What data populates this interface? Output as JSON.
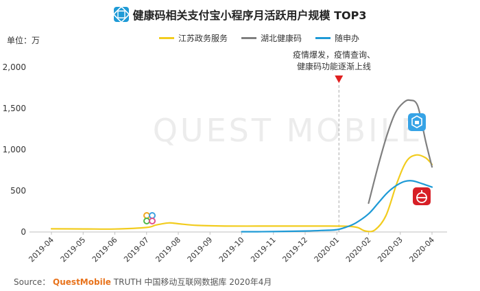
{
  "header": {
    "title": "健康码相关支付宝小程序月活跃用户规模 TOP3",
    "unit": "单位：万"
  },
  "watermark": "QUEST MOBILE",
  "annotation": {
    "line1": "疫情爆发，疫情查询、",
    "line2": "健康码功能逐渐上线"
  },
  "source": {
    "label": "Source：",
    "brand": "QuestMobile",
    "rest": "TRUTH 中国移动互联网数据库 2020年4月"
  },
  "colors": {
    "jiangsu": "#f2cc1e",
    "hubei": "#7f7f7f",
    "suishenban": "#1e9ad6",
    "marker": "#e02020"
  },
  "icons": [
    "title-logo-icon",
    "jiangsu-app-icon",
    "hubei-app-icon",
    "suishenban-app-icon"
  ],
  "chart_data": {
    "type": "line",
    "title": "健康码相关支付宝小程序月活跃用户规模 TOP3",
    "ylabel": "万",
    "categories": [
      "2019-04",
      "2019-05",
      "2019-06",
      "2019-07",
      "2019-08",
      "2019-09",
      "2019-10",
      "2019-11",
      "2019-12",
      "2020-01",
      "2020-02",
      "2020-03",
      "2020-04"
    ],
    "yticks": [
      "0",
      "500",
      "1,000",
      "1,500",
      "2,000"
    ],
    "ylim": [
      0,
      2000
    ],
    "grid": false,
    "legend_position": "top",
    "annotation_at": "2020-01",
    "series": [
      {
        "name": "江苏政务服务",
        "key": "jiangsu",
        "points": [
          [
            0,
            38
          ],
          [
            1,
            37
          ],
          [
            2,
            36
          ],
          [
            3,
            55
          ],
          [
            3.3,
            85
          ],
          [
            3.7,
            110
          ],
          [
            4,
            100
          ],
          [
            4.6,
            80
          ],
          [
            5.5,
            72
          ],
          [
            6.5,
            72
          ],
          [
            7.5,
            72
          ],
          [
            8.5,
            72
          ],
          [
            9.3,
            70
          ],
          [
            9.65,
            55
          ],
          [
            9.9,
            12
          ],
          [
            10.2,
            25
          ],
          [
            10.55,
            200
          ],
          [
            10.9,
            600
          ],
          [
            11.2,
            860
          ],
          [
            11.5,
            935
          ],
          [
            11.8,
            900
          ],
          [
            12,
            820
          ]
        ]
      },
      {
        "name": "湖北健康码",
        "key": "hubei",
        "points": [
          [
            10,
            350
          ],
          [
            10.3,
            800
          ],
          [
            10.6,
            1200
          ],
          [
            10.85,
            1450
          ],
          [
            11.1,
            1570
          ],
          [
            11.3,
            1600
          ],
          [
            11.55,
            1530
          ],
          [
            11.8,
            1100
          ],
          [
            12,
            790
          ]
        ]
      },
      {
        "name": "随申办",
        "key": "suishenban",
        "points": [
          [
            6,
            3
          ],
          [
            6.5,
            3
          ],
          [
            7,
            5
          ],
          [
            7.5,
            8
          ],
          [
            8,
            12
          ],
          [
            8.5,
            18
          ],
          [
            9,
            28
          ],
          [
            9.3,
            60
          ],
          [
            9.6,
            110
          ],
          [
            10,
            220
          ],
          [
            10.3,
            350
          ],
          [
            10.6,
            480
          ],
          [
            10.9,
            570
          ],
          [
            11.15,
            615
          ],
          [
            11.4,
            620
          ],
          [
            11.7,
            585
          ],
          [
            12,
            545
          ]
        ]
      }
    ]
  }
}
